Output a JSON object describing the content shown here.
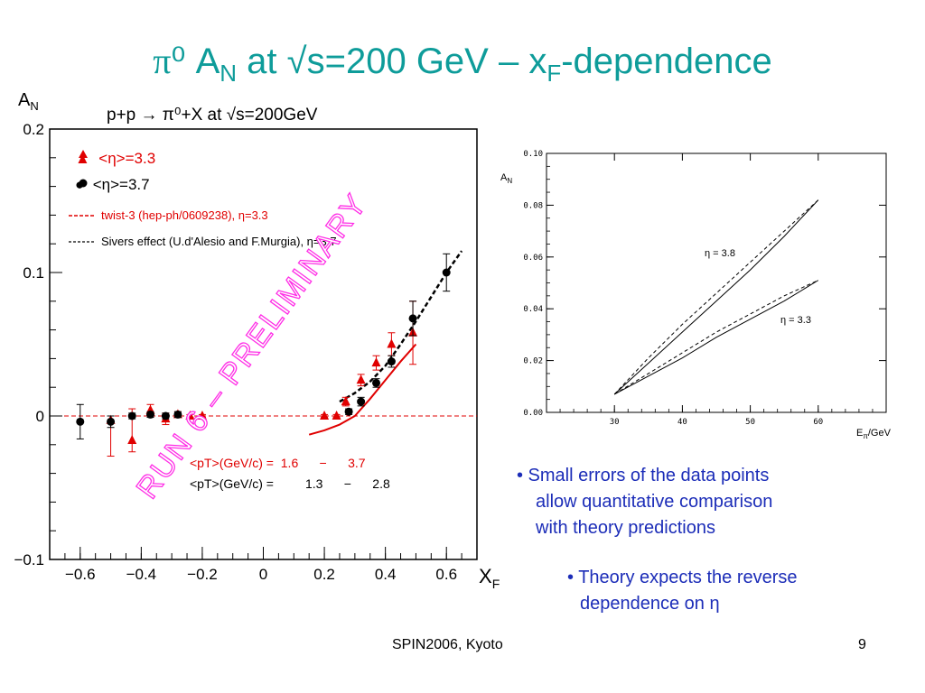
{
  "slide": {
    "title_pi": "π⁰",
    "title_a": "A",
    "title_n": "N",
    "title_rest1": " at √s=200 GeV – x",
    "title_f": "F",
    "title_rest2": "-dependence",
    "bullet1_lines": [
      "• Small errors of the data points",
      "allow quantitative comparison",
      "with theory predictions"
    ],
    "bullet2_lines": [
      "• Theory expects the reverse",
      "dependence on η"
    ],
    "footer_left": "SPIN2006, Kyoto",
    "page_number": "9",
    "colors": {
      "title": "#0e9c9a",
      "bullets": "#1c2db8",
      "red": "#e00000",
      "watermark": "#ff2de6"
    }
  },
  "chart_data": [
    {
      "type": "scatter",
      "title": "p+p → π⁰+X at √s=200GeV",
      "ylabel_main": "A",
      "ylabel_sub": "N",
      "xlabel_main": "X",
      "xlabel_sub": "F",
      "xlim": [
        -0.7,
        0.7
      ],
      "ylim": [
        -0.1,
        0.2
      ],
      "xticks": [
        "−0.6",
        "−0.4",
        "−0.2",
        "0",
        "0.2",
        "0.4",
        "0.6"
      ],
      "yticks": [
        "−0.1",
        "0",
        "0.1",
        "0.2"
      ],
      "legend": [
        "▲  <η>=3.3",
        "●  <η>=3.7",
        "twist-3 (hep-ph/0609238), η=3.3",
        "Sivers effect (U.d'Alesio and F.Murgia), η=3.7"
      ],
      "pt_labels": [
        "<pT>(GeV/c) =  1.6      −      3.7",
        "<pT>(GeV/c) =         1.3      −      2.8"
      ],
      "watermark": "RUN 6 – PRELIMINARY",
      "series": [
        {
          "name": "<η>=3.3",
          "marker": "triangle",
          "color": "#e00000",
          "x": [
            -0.5,
            -0.43,
            -0.37,
            -0.32,
            -0.28,
            -0.24,
            -0.2,
            0.2,
            0.24,
            0.27,
            0.32,
            0.37,
            0.42,
            0.49
          ],
          "y": [
            -0.003,
            -0.017,
            0.004,
            -0.002,
            0.001,
            0.0,
            0.0,
            0.0,
            0.0,
            0.01,
            0.025,
            0.037,
            0.05,
            0.058
          ],
          "err_lo": [
            0.025,
            0.008,
            0.004,
            0.004,
            0.002,
            0.001,
            0.001,
            0.001,
            0.001,
            0.003,
            0.004,
            0.005,
            0.008,
            0.022
          ],
          "err_hi": [
            0.003,
            0.022,
            0.004,
            0.004,
            0.002,
            0.001,
            0.001,
            0.001,
            0.001,
            0.003,
            0.004,
            0.005,
            0.008,
            0.022
          ]
        },
        {
          "name": "<η>=3.7",
          "marker": "circle",
          "color": "#000000",
          "x": [
            -0.6,
            -0.5,
            -0.43,
            -0.37,
            -0.32,
            -0.28,
            0.28,
            0.32,
            0.37,
            0.42,
            0.49,
            0.6
          ],
          "y": [
            -0.004,
            -0.004,
            0.0,
            0.001,
            0.0,
            0.001,
            0.003,
            0.01,
            0.023,
            0.038,
            0.068,
            0.1
          ],
          "err_lo": [
            0.012,
            0.004,
            0.002,
            0.002,
            0.002,
            0.002,
            0.002,
            0.003,
            0.003,
            0.004,
            0.012,
            0.013
          ],
          "err_hi": [
            0.012,
            0.004,
            0.002,
            0.002,
            0.002,
            0.002,
            0.002,
            0.003,
            0.003,
            0.004,
            0.012,
            0.013
          ]
        },
        {
          "name": "twist-3 (hep-ph/0609238), η=3.3",
          "style": "line",
          "color": "#e00000",
          "x": [
            0.15,
            0.2,
            0.25,
            0.3,
            0.35,
            0.4,
            0.45,
            0.5
          ],
          "y": [
            -0.013,
            -0.01,
            -0.006,
            0.0,
            0.012,
            0.025,
            0.038,
            0.05
          ]
        },
        {
          "name": "Sivers effect (U.d'Alesio and F.Murgia), η=3.7",
          "style": "dashed",
          "color": "#000000",
          "x": [
            0.25,
            0.3,
            0.35,
            0.4,
            0.45,
            0.5,
            0.55,
            0.6,
            0.65
          ],
          "y": [
            0.01,
            0.016,
            0.024,
            0.035,
            0.05,
            0.066,
            0.083,
            0.1,
            0.115
          ]
        }
      ]
    },
    {
      "type": "line",
      "ylabel_main": "A",
      "ylabel_sub": "N",
      "xlabel_main": "E",
      "xlabel_sub": "π",
      "xlabel_tail": "/GeV",
      "xlim": [
        20,
        70
      ],
      "ylim": [
        0.0,
        0.1
      ],
      "xticks": [
        "30",
        "40",
        "50",
        "60"
      ],
      "yticks": [
        "0.00",
        "0.02",
        "0.04",
        "0.06",
        "0.08",
        "0.10"
      ],
      "labels": [
        "η = 3.8",
        "η = 3.3"
      ],
      "series": [
        {
          "name": "η = 3.8",
          "style": "solid",
          "x": [
            30,
            35,
            40,
            45,
            50,
            55,
            60
          ],
          "y": [
            0.007,
            0.019,
            0.031,
            0.043,
            0.055,
            0.068,
            0.082
          ]
        },
        {
          "name": "η = 3.8",
          "style": "dashed",
          "x": [
            30,
            35,
            40,
            45,
            50,
            55,
            60
          ],
          "y": [
            0.007,
            0.021,
            0.034,
            0.046,
            0.058,
            0.07,
            0.082
          ]
        },
        {
          "name": "η = 3.3",
          "style": "solid",
          "x": [
            30,
            35,
            40,
            45,
            50,
            55,
            60
          ],
          "y": [
            0.007,
            0.014,
            0.021,
            0.029,
            0.036,
            0.043,
            0.051
          ]
        },
        {
          "name": "η = 3.3",
          "style": "dashed",
          "x": [
            30,
            35,
            40,
            45,
            50,
            55,
            60
          ],
          "y": [
            0.007,
            0.015,
            0.023,
            0.031,
            0.038,
            0.045,
            0.051
          ]
        }
      ]
    }
  ]
}
